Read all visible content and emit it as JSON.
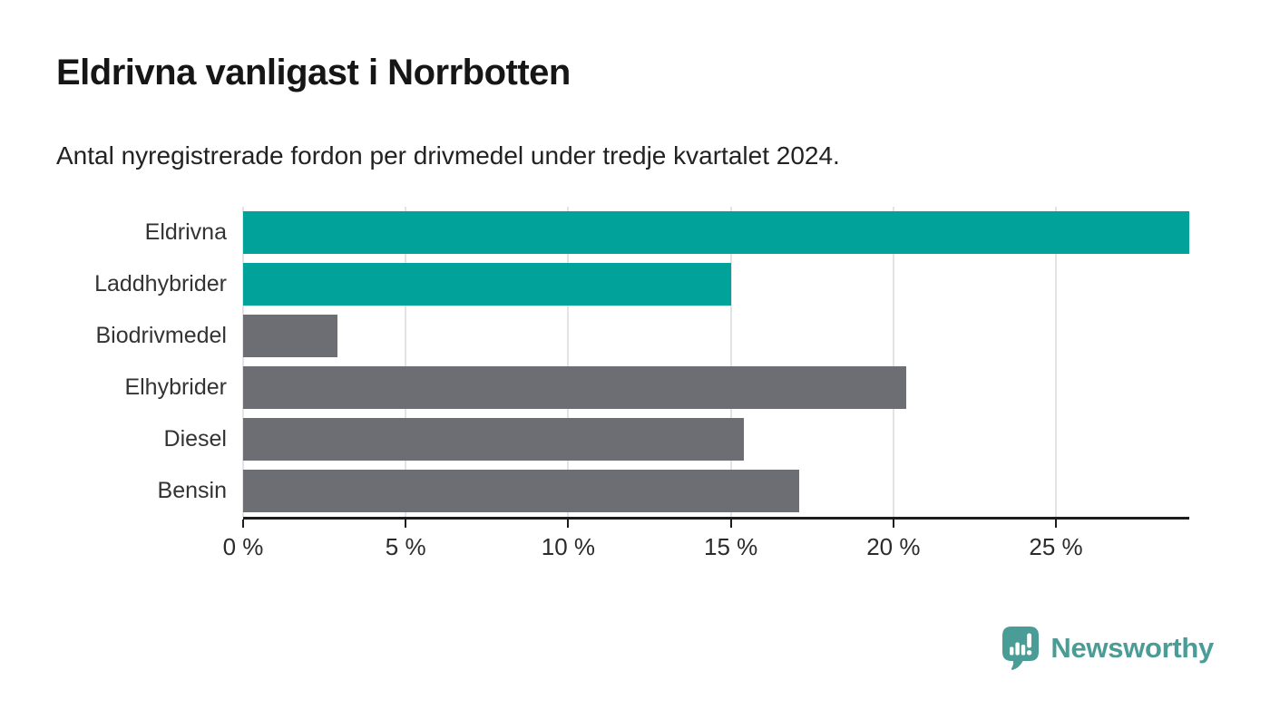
{
  "page": {
    "title": "Eldrivna vanligast i Norrbotten",
    "subtitle": "Antal nyregistrerade fordon per drivmedel under tredje kvartalet 2024."
  },
  "chart_data": {
    "type": "bar",
    "orientation": "horizontal",
    "title": "Eldrivna vanligast i Norrbotten",
    "subtitle": "Antal nyregistrerade fordon per drivmedel under tredje kvartalet 2024.",
    "categories": [
      "Eldrivna",
      "Laddhybrider",
      "Biodrivmedel",
      "Elhybrider",
      "Diesel",
      "Bensin"
    ],
    "values": [
      29.1,
      15.0,
      2.9,
      20.4,
      15.4,
      17.1
    ],
    "unit": "%",
    "bar_color_keys": [
      "highlight",
      "highlight",
      "base",
      "base",
      "base",
      "base"
    ],
    "palette": {
      "highlight": "#00a29a",
      "base": "#6d6d74"
    },
    "xlabel": "",
    "ylabel": "",
    "xlim": [
      0,
      29.1
    ],
    "x_ticks": {
      "values": [
        0,
        5,
        10,
        15,
        20,
        25
      ],
      "labels": [
        "0 %",
        "5 %",
        "10 %",
        "15 %",
        "20 %",
        "25 %"
      ]
    },
    "grid": "vertical",
    "legend": "none"
  },
  "footer": {
    "brand": "Newsworthy",
    "brand_color": "#4a9c96"
  }
}
